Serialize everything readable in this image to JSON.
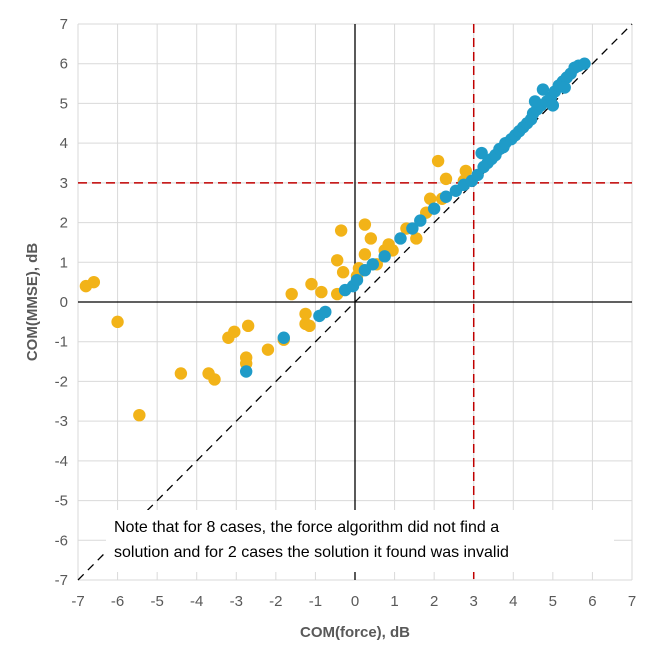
{
  "chart_data": {
    "type": "scatter",
    "xlabel": "COM(force), dB",
    "ylabel": "COM(MMSE), dB",
    "xlim": [
      -7,
      7
    ],
    "ylim": [
      -7,
      7
    ],
    "xticks": [
      -7,
      -6,
      -5,
      -4,
      -3,
      -2,
      -1,
      0,
      1,
      2,
      3,
      4,
      5,
      6,
      7
    ],
    "yticks": [
      -7,
      -6,
      -5,
      -4,
      -3,
      -2,
      -1,
      0,
      1,
      2,
      3,
      4,
      5,
      6,
      7
    ],
    "grid": true,
    "reference_lines": {
      "diagonal_y_equals_x": true,
      "vertical_x": 3,
      "horizontal_y": 3
    },
    "annotation": [
      "Note that for 8 cases, the force algorithm did not find a",
      "solution and for 2 cases the solution it found was invalid"
    ],
    "series": [
      {
        "color": "#f2b318",
        "points": [
          [
            -6.8,
            0.4
          ],
          [
            -6.6,
            0.5
          ],
          [
            -6.0,
            -0.5
          ],
          [
            -5.45,
            -2.85
          ],
          [
            -4.4,
            -1.8
          ],
          [
            -3.7,
            -1.8
          ],
          [
            -3.55,
            -1.95
          ],
          [
            -3.2,
            -0.9
          ],
          [
            -3.05,
            -0.75
          ],
          [
            -2.7,
            -0.6
          ],
          [
            -2.75,
            -1.4
          ],
          [
            -2.75,
            -1.55
          ],
          [
            -2.2,
            -1.2
          ],
          [
            -1.8,
            -0.95
          ],
          [
            -1.6,
            0.2
          ],
          [
            -1.25,
            -0.3
          ],
          [
            -1.25,
            -0.55
          ],
          [
            -1.15,
            -0.6
          ],
          [
            -1.1,
            0.45
          ],
          [
            -0.85,
            0.25
          ],
          [
            -0.45,
            0.2
          ],
          [
            -0.45,
            1.05
          ],
          [
            -0.35,
            1.8
          ],
          [
            -0.3,
            0.75
          ],
          [
            0.1,
            0.85
          ],
          [
            0.05,
            0.65
          ],
          [
            0.25,
            1.95
          ],
          [
            0.25,
            1.2
          ],
          [
            0.4,
            1.6
          ],
          [
            0.55,
            0.95
          ],
          [
            0.75,
            1.3
          ],
          [
            0.85,
            1.45
          ],
          [
            0.95,
            1.3
          ],
          [
            1.3,
            1.85
          ],
          [
            1.55,
            1.6
          ],
          [
            1.8,
            2.25
          ],
          [
            1.9,
            2.6
          ],
          [
            2.1,
            3.55
          ],
          [
            2.2,
            2.6
          ],
          [
            2.3,
            3.1
          ],
          [
            2.8,
            3.3
          ],
          [
            2.75,
            3.05
          ]
        ]
      },
      {
        "color": "#1f9bc8",
        "points": [
          [
            -2.75,
            -1.75
          ],
          [
            -1.8,
            -0.9
          ],
          [
            -0.9,
            -0.35
          ],
          [
            -0.75,
            -0.25
          ],
          [
            -0.25,
            0.3
          ],
          [
            -0.05,
            0.4
          ],
          [
            0.05,
            0.55
          ],
          [
            0.25,
            0.8
          ],
          [
            0.45,
            0.95
          ],
          [
            0.75,
            1.15
          ],
          [
            1.15,
            1.6
          ],
          [
            1.45,
            1.85
          ],
          [
            1.65,
            2.05
          ],
          [
            2.0,
            2.35
          ],
          [
            2.3,
            2.65
          ],
          [
            2.55,
            2.8
          ],
          [
            2.75,
            2.95
          ],
          [
            2.95,
            3.05
          ],
          [
            3.1,
            3.2
          ],
          [
            3.25,
            3.4
          ],
          [
            3.35,
            3.5
          ],
          [
            3.2,
            3.75
          ],
          [
            3.45,
            3.6
          ],
          [
            3.55,
            3.7
          ],
          [
            3.65,
            3.85
          ],
          [
            3.75,
            3.9
          ],
          [
            3.8,
            4.0
          ],
          [
            3.95,
            4.1
          ],
          [
            4.05,
            4.2
          ],
          [
            4.15,
            4.3
          ],
          [
            4.25,
            4.4
          ],
          [
            4.35,
            4.5
          ],
          [
            4.45,
            4.6
          ],
          [
            4.5,
            4.75
          ],
          [
            4.6,
            4.85
          ],
          [
            4.7,
            4.95
          ],
          [
            4.55,
            5.05
          ],
          [
            4.85,
            5.05
          ],
          [
            4.95,
            5.15
          ],
          [
            4.75,
            5.35
          ],
          [
            5.05,
            5.3
          ],
          [
            5.15,
            5.45
          ],
          [
            5.25,
            5.55
          ],
          [
            5.35,
            5.65
          ],
          [
            5.45,
            5.75
          ],
          [
            5.55,
            5.9
          ],
          [
            5.65,
            5.95
          ],
          [
            5.8,
            6.0
          ],
          [
            5.0,
            4.95
          ],
          [
            5.3,
            5.4
          ]
        ]
      }
    ]
  }
}
